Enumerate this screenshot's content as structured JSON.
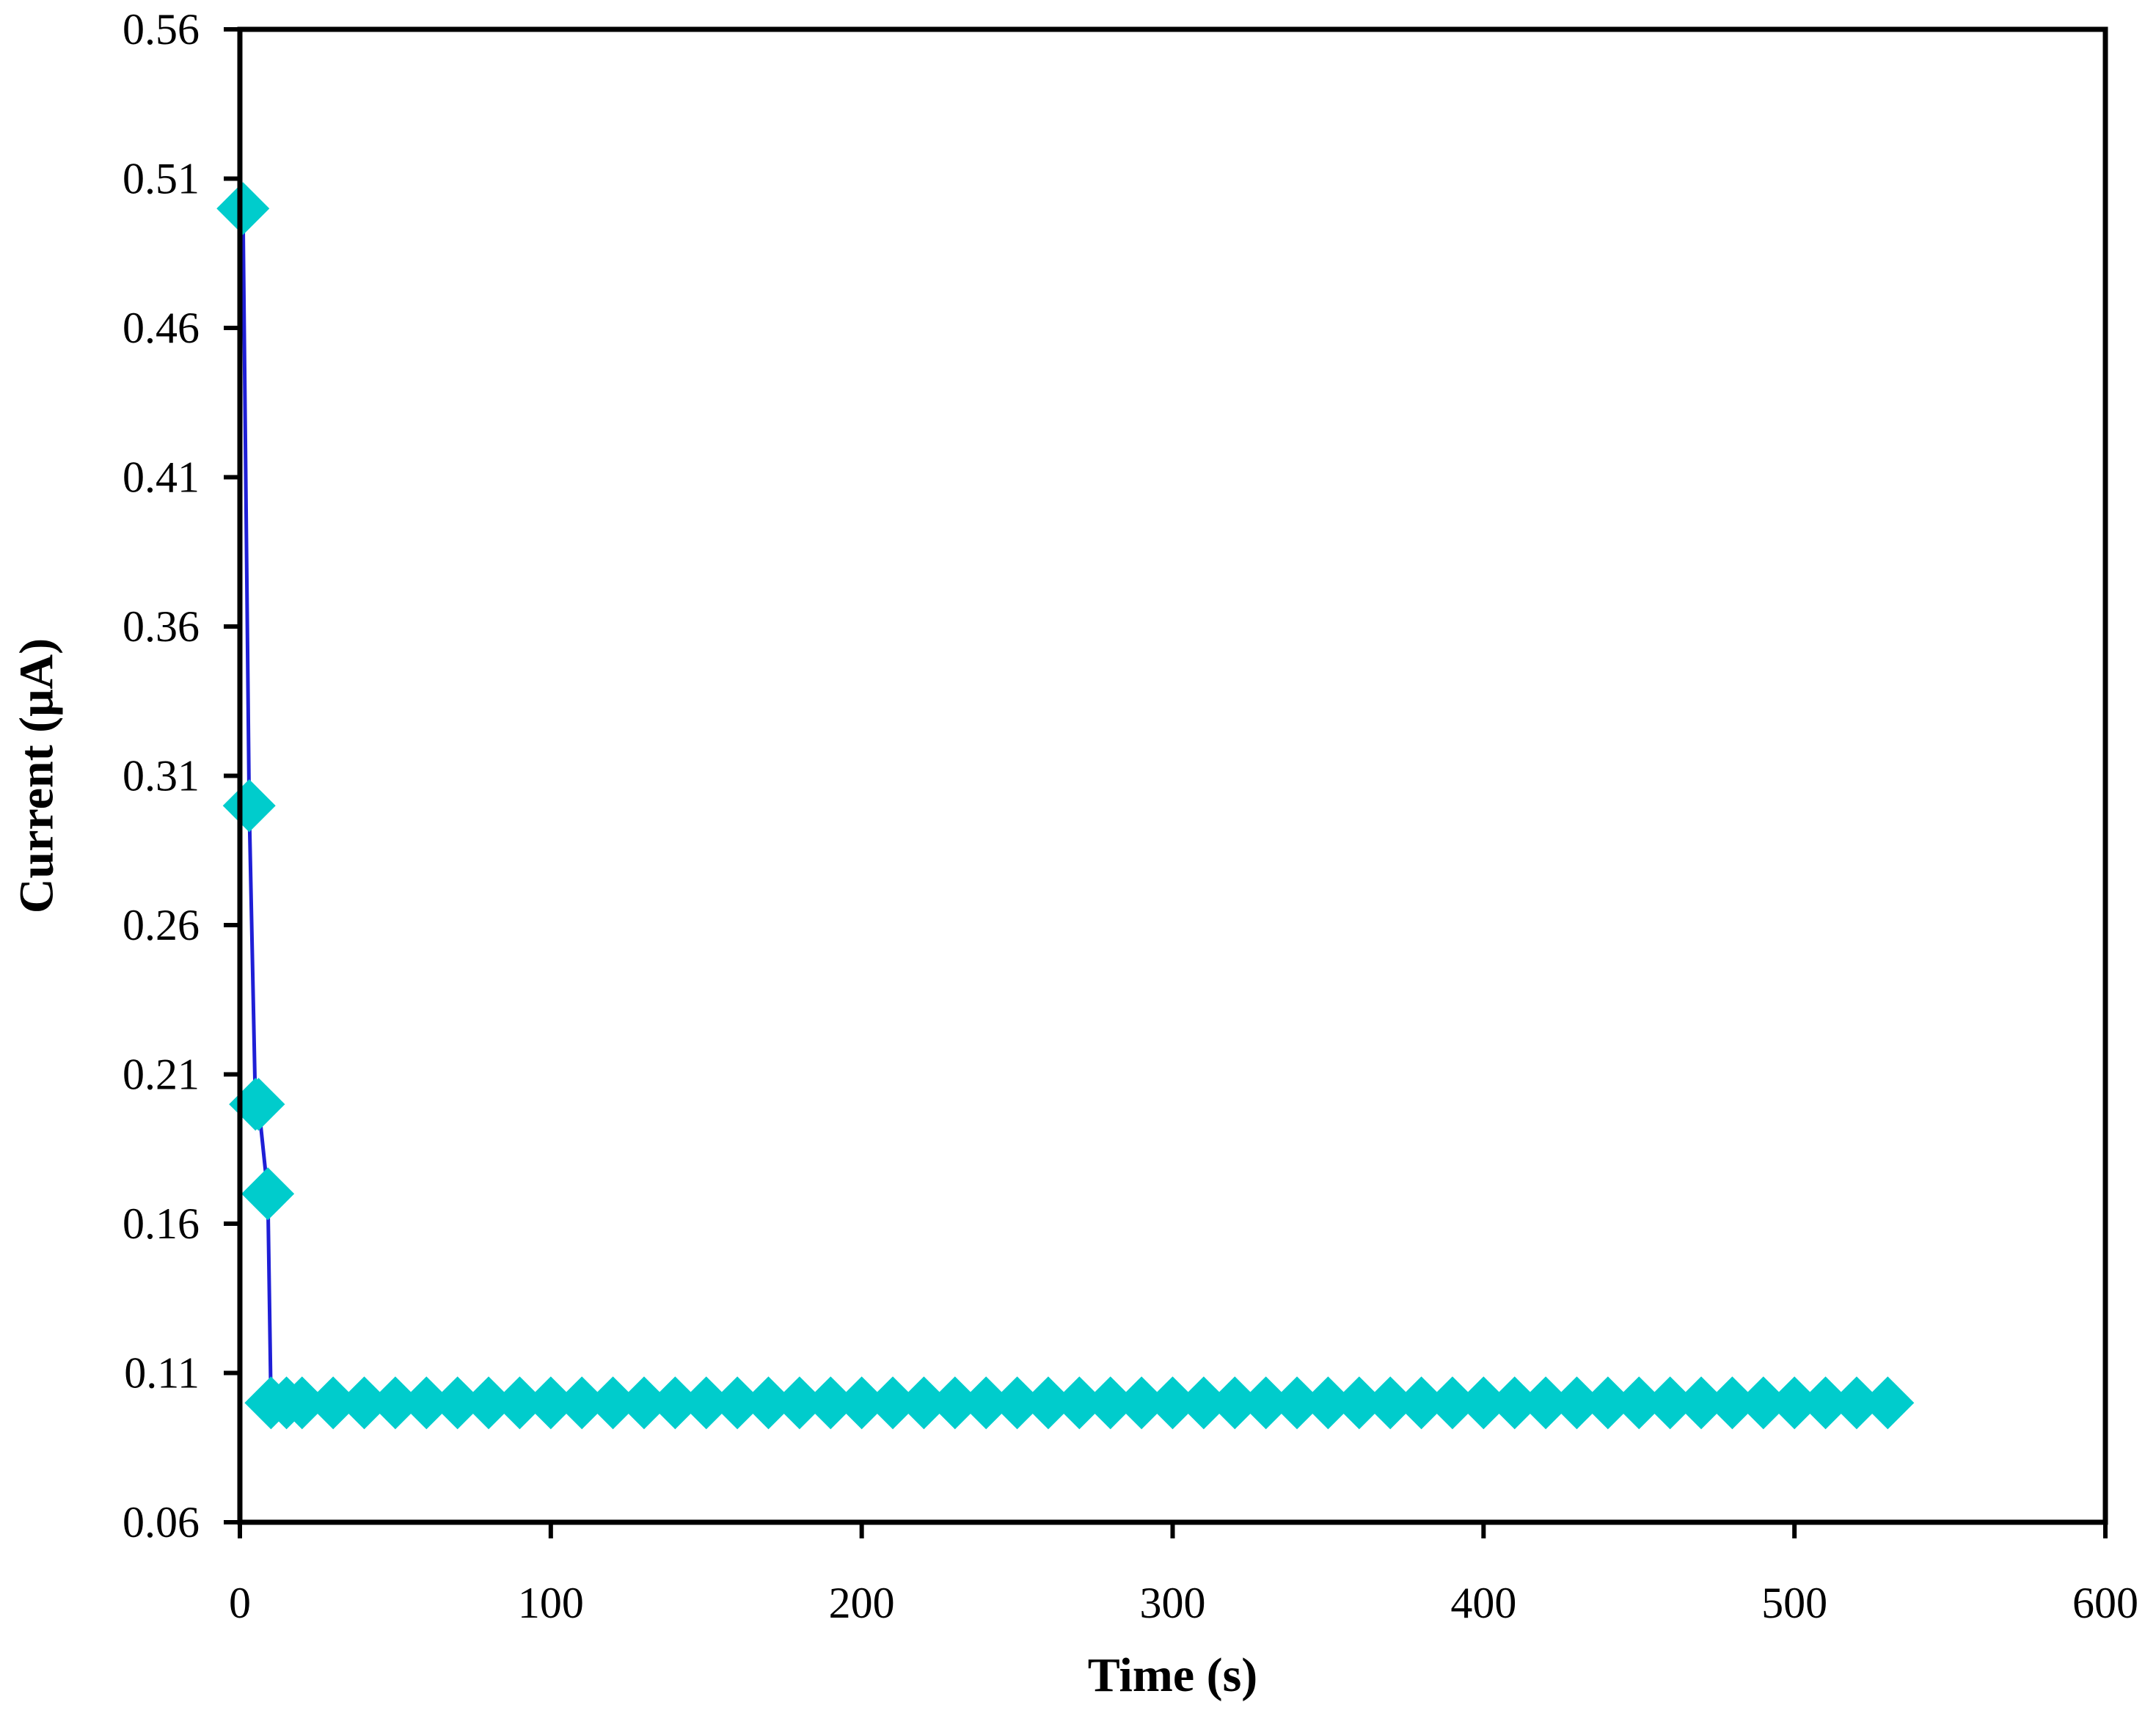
{
  "chart_data": {
    "type": "line",
    "title": "",
    "xlabel": "Time (s)",
    "ylabel": "Current (μA)",
    "xlim": [
      0,
      600
    ],
    "ylim": [
      0.06,
      0.56
    ],
    "xticks": [
      0,
      100,
      200,
      300,
      400,
      500,
      600
    ],
    "yticks": [
      0.06,
      0.11,
      0.16,
      0.21,
      0.26,
      0.31,
      0.36,
      0.41,
      0.46,
      0.51,
      0.56
    ],
    "ytick_labels": [
      "0.06",
      "0.11",
      "0.16",
      "0.21",
      "0.26",
      "0.31",
      "0.36",
      "0.41",
      "0.46",
      "0.51",
      "0.56"
    ],
    "grid": false,
    "legend": "none",
    "colors": {
      "line": "#1f1fd6",
      "marker": "#00cccc",
      "axis": "#000000"
    },
    "marker": "diamond",
    "series": [
      {
        "x": [
          1,
          3,
          5,
          6,
          9,
          10,
          15,
          20,
          30,
          40,
          50,
          60,
          70,
          80,
          90,
          100,
          110,
          120,
          130,
          140,
          150,
          160,
          170,
          180,
          190,
          200,
          210,
          220,
          230,
          240,
          250,
          260,
          270,
          280,
          290,
          300,
          310,
          320,
          330,
          340,
          350,
          360,
          370,
          380,
          390,
          400,
          410,
          420,
          430,
          440,
          450,
          460,
          470,
          480,
          490,
          500,
          510,
          520,
          530
        ],
        "y": [
          0.5,
          0.3,
          0.2,
          0.2,
          0.17,
          0.1,
          0.1,
          0.1,
          0.1,
          0.1,
          0.1,
          0.1,
          0.1,
          0.1,
          0.1,
          0.1,
          0.1,
          0.1,
          0.1,
          0.1,
          0.1,
          0.1,
          0.1,
          0.1,
          0.1,
          0.1,
          0.1,
          0.1,
          0.1,
          0.1,
          0.1,
          0.1,
          0.1,
          0.1,
          0.1,
          0.1,
          0.1,
          0.1,
          0.1,
          0.1,
          0.1,
          0.1,
          0.1,
          0.1,
          0.1,
          0.1,
          0.1,
          0.1,
          0.1,
          0.1,
          0.1,
          0.1,
          0.1,
          0.1,
          0.1,
          0.1,
          0.1,
          0.1,
          0.1
        ]
      }
    ]
  }
}
